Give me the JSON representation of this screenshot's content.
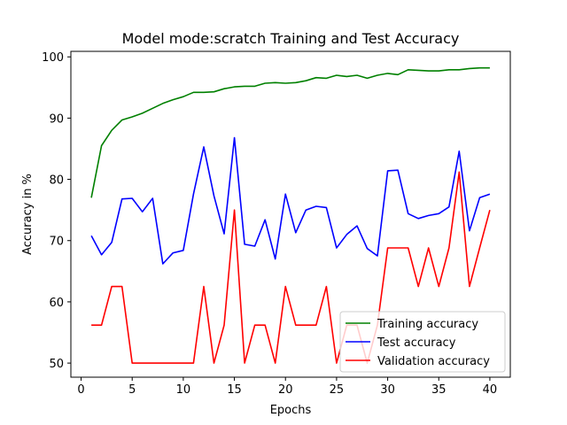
{
  "chart_data": {
    "type": "line",
    "title": "Model mode:scratch Training and Test Accuracy",
    "xlabel": "Epochs",
    "ylabel": "Accuracy in %",
    "xlim": [
      -1,
      42
    ],
    "ylim": [
      47.7,
      100.9
    ],
    "xticks": [
      0,
      5,
      10,
      15,
      20,
      25,
      30,
      35,
      40
    ],
    "yticks": [
      50,
      60,
      70,
      80,
      90,
      100
    ],
    "x": [
      1,
      2,
      3,
      4,
      5,
      6,
      7,
      8,
      9,
      10,
      11,
      12,
      13,
      14,
      15,
      16,
      17,
      18,
      19,
      20,
      21,
      22,
      23,
      24,
      25,
      26,
      27,
      28,
      29,
      30,
      31,
      32,
      33,
      34,
      35,
      36,
      37,
      38,
      39,
      40
    ],
    "legend_position": "lower-right",
    "series": [
      {
        "name": "Training accuracy",
        "color": "#008000",
        "values": [
          77.0,
          85.5,
          88.0,
          89.7,
          90.2,
          90.8,
          91.6,
          92.4,
          93.0,
          93.5,
          94.2,
          94.2,
          94.3,
          94.8,
          95.1,
          95.2,
          95.2,
          95.7,
          95.8,
          95.7,
          95.8,
          96.1,
          96.6,
          96.5,
          97.0,
          96.8,
          97.0,
          96.5,
          97.0,
          97.3,
          97.1,
          97.9,
          97.8,
          97.7,
          97.7,
          97.9,
          97.9,
          98.1,
          98.2,
          98.2
        ]
      },
      {
        "name": "Test accuracy",
        "color": "#0000ff",
        "values": [
          70.8,
          67.7,
          69.7,
          76.8,
          76.9,
          74.7,
          76.9,
          66.2,
          68.0,
          68.4,
          77.6,
          85.3,
          77.3,
          71.1,
          86.8,
          69.4,
          69.1,
          73.4,
          67.0,
          77.6,
          71.3,
          75.0,
          75.6,
          75.4,
          68.8,
          71.0,
          72.4,
          68.7,
          67.5,
          81.4,
          81.5,
          74.4,
          73.6,
          74.1,
          74.4,
          75.5,
          84.6,
          71.6,
          77.0,
          77.6
        ]
      },
      {
        "name": "Validation accuracy",
        "color": "#ff0000",
        "values": [
          56.2,
          56.2,
          62.5,
          62.5,
          50.0,
          50.0,
          50.0,
          50.0,
          50.0,
          50.0,
          50.0,
          62.5,
          50.0,
          56.2,
          75.0,
          50.0,
          56.2,
          56.2,
          50.0,
          62.5,
          56.2,
          56.2,
          56.2,
          62.5,
          50.0,
          56.2,
          56.2,
          50.0,
          56.2,
          68.8,
          68.8,
          68.8,
          62.5,
          68.8,
          62.5,
          68.8,
          81.2,
          62.5,
          68.8,
          75.0
        ]
      }
    ]
  }
}
